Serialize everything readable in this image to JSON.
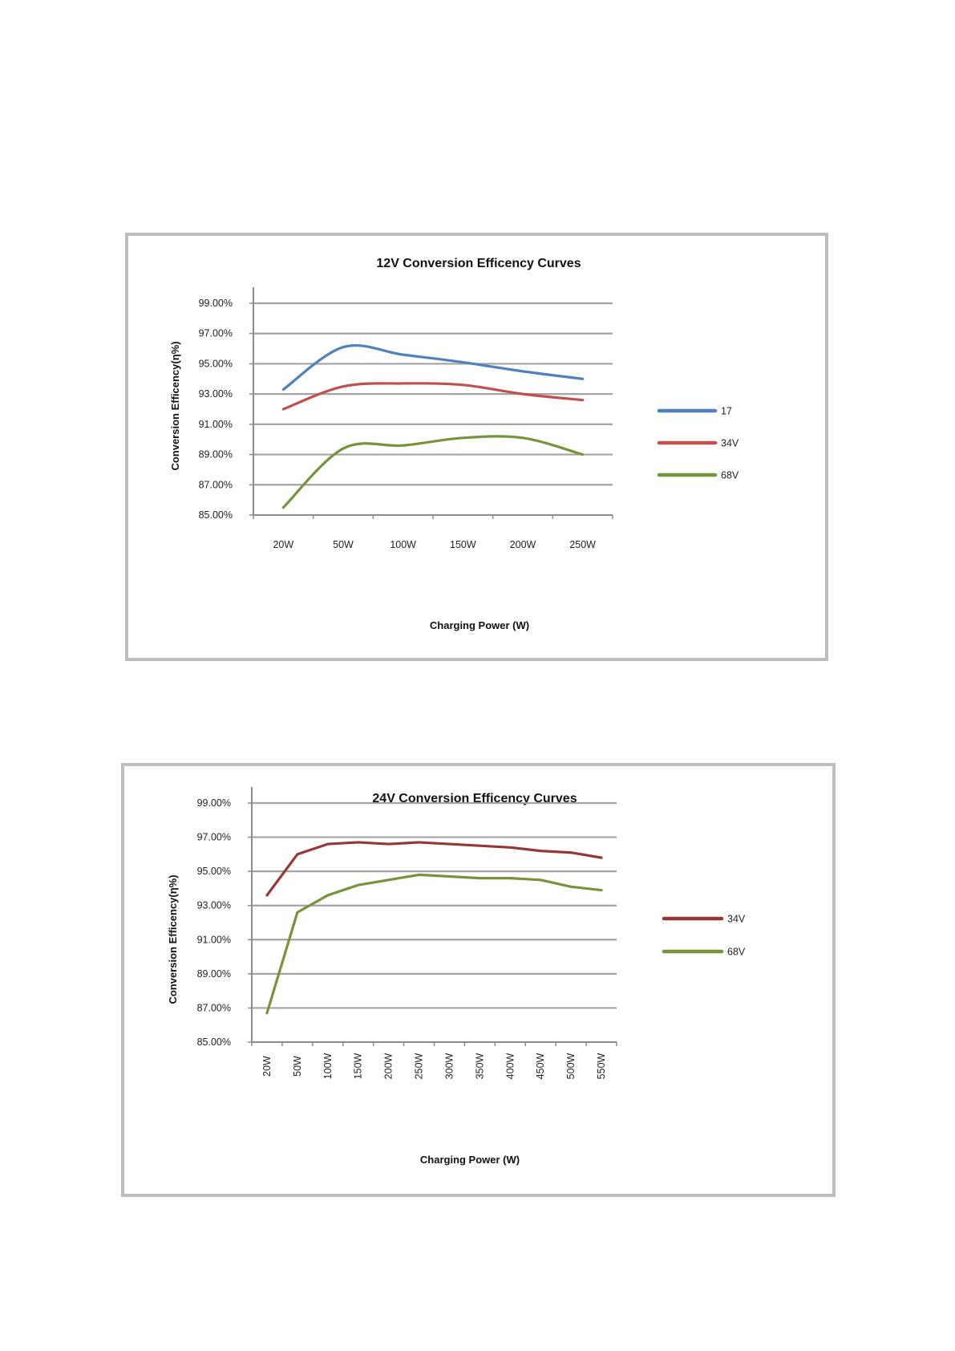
{
  "chart_data": [
    {
      "type": "line",
      "title": "12V  Conversion Efficency Curves",
      "xlabel": "Charging  Power  (W)",
      "ylabel": "Conversion Efficency(η%)",
      "categories": [
        "20W",
        "50W",
        "100W",
        "150W",
        "200W",
        "250W"
      ],
      "ylim": [
        85.0,
        99.0
      ],
      "yticks": [
        "85.00%",
        "87.00%",
        "89.00%",
        "91.00%",
        "93.00%",
        "95.00%",
        "97.00%",
        "99.00%"
      ],
      "grid": true,
      "legend": "right",
      "smooth": true,
      "series": [
        {
          "name": "17",
          "color": "#4f81bd",
          "values": [
            93.3,
            96.1,
            95.6,
            95.1,
            94.5,
            94.0
          ]
        },
        {
          "name": "34V",
          "color": "#c0504d",
          "values": [
            92.0,
            93.5,
            93.7,
            93.6,
            93.0,
            92.6
          ]
        },
        {
          "name": "68V",
          "color": "#77933c",
          "values": [
            85.5,
            89.4,
            89.6,
            90.1,
            90.1,
            89.0
          ]
        }
      ]
    },
    {
      "type": "line",
      "title": "24V  Conversion Efficency Curves",
      "xlabel": "Charging  Power  (W)",
      "ylabel": "Conversion Efficency(η%)",
      "categories": [
        "20W",
        "50W",
        "100W",
        "150W",
        "200W",
        "250W",
        "300W",
        "350W",
        "400W",
        "450W",
        "500W",
        "550W"
      ],
      "ylim": [
        85.0,
        99.0
      ],
      "yticks": [
        "85.00%",
        "87.00%",
        "89.00%",
        "91.00%",
        "93.00%",
        "95.00%",
        "97.00%",
        "99.00%"
      ],
      "grid": true,
      "legend": "right",
      "smooth": false,
      "series": [
        {
          "name": "34V",
          "color": "#953735",
          "values": [
            93.6,
            96.0,
            96.6,
            96.7,
            96.6,
            96.7,
            96.6,
            96.5,
            96.4,
            96.2,
            96.1,
            95.8
          ]
        },
        {
          "name": "68V",
          "color": "#77933c",
          "values": [
            86.7,
            92.6,
            93.6,
            94.2,
            94.5,
            94.8,
            94.7,
            94.6,
            94.6,
            94.5,
            94.1,
            93.9
          ]
        }
      ]
    }
  ]
}
